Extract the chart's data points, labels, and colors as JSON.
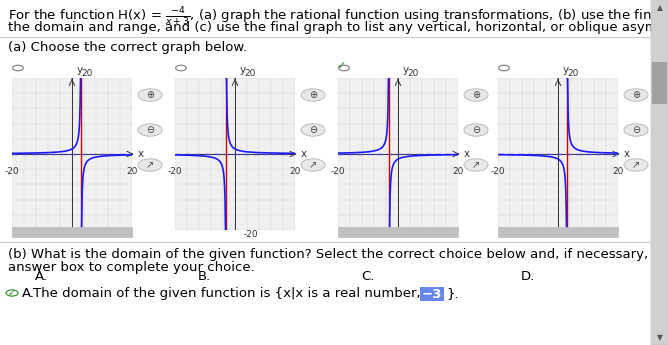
{
  "correct_graph": "C",
  "graph_labels": [
    "A.",
    "B.",
    "C.",
    "D."
  ],
  "axis_range": [
    -20,
    20
  ],
  "part_b_line1": "(b) What is the domain of the given function? Select the correct choice below and, if necessary, fill in the",
  "part_b_line2": "answer box to complete your choice.",
  "answer_text_pre": "The domain of the given function is {x|x is a real number, x≠",
  "answer_value": "−3",
  "answer_close": "}.",
  "bg_color": "#ffffff",
  "grid_color": "#d3d3d3",
  "axis_color": "#333333",
  "curve_color": "#1a1aff",
  "vasymptote_color": "#cc0000",
  "hasymptote_color": "#4444cc",
  "check_color": "#228B22",
  "highlight_color": "#6688ee",
  "sep_color": "#cccccc",
  "graph_bg": "#f0f0f0",
  "radio_color": "#888888",
  "font_size_body": 9.5,
  "font_size_small": 8.0,
  "font_size_graph_tick": 6.5,
  "scrollbar_bg": "#d0d0d0",
  "scrollbar_thumb": "#a0a0a0",
  "zoom_btn_color": "#e8e8e8",
  "bottom_scroll_color": "#c0c0c0"
}
